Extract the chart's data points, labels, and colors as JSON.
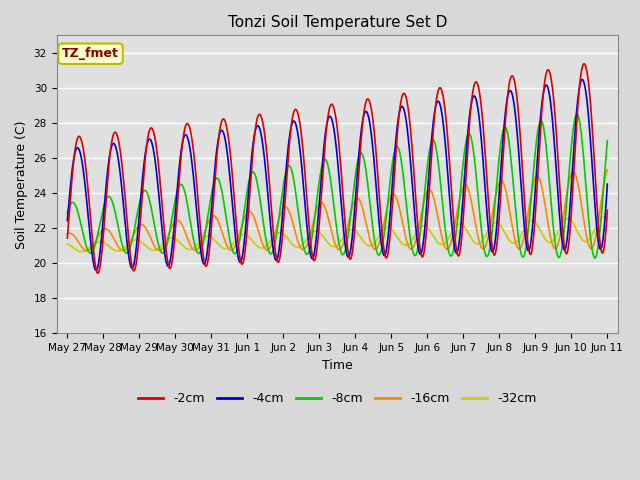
{
  "title": "Tonzi Soil Temperature Set D",
  "xlabel": "Time",
  "ylabel": "Soil Temperature (C)",
  "ylim": [
    16,
    33
  ],
  "yticks": [
    16,
    18,
    20,
    22,
    24,
    26,
    28,
    30,
    32
  ],
  "xlim_days": [
    -0.3,
    15.3
  ],
  "background_color": "#d8d8d8",
  "plot_bg_color": "#e0e0e0",
  "grid_color": "white",
  "annotation_text": "TZ_fmet",
  "annotation_color": "#8B0000",
  "annotation_bg": "#ffffcc",
  "annotation_border": "#bbbb00",
  "series": [
    {
      "label": "-2cm",
      "color": "#dd0000",
      "lw": 1.2
    },
    {
      "label": "-4cm",
      "color": "#0000dd",
      "lw": 1.2
    },
    {
      "label": "-8cm",
      "color": "#00cc00",
      "lw": 1.2
    },
    {
      "label": "-16cm",
      "color": "#ff8800",
      "lw": 1.2
    },
    {
      "label": "-32cm",
      "color": "#cccc00",
      "lw": 1.2
    }
  ],
  "xtick_labels": [
    "May 27",
    "May 28",
    "May 29",
    "May 30",
    "May 31",
    "Jun 1",
    "Jun 2",
    "Jun 3",
    "Jun 4",
    "Jun 5",
    "Jun 6",
    "Jun 7",
    "Jun 8",
    "Jun 9",
    "Jun 10",
    "Jun 11"
  ],
  "xtick_positions": [
    0,
    1,
    2,
    3,
    4,
    5,
    6,
    7,
    8,
    9,
    10,
    11,
    12,
    13,
    14,
    15
  ]
}
